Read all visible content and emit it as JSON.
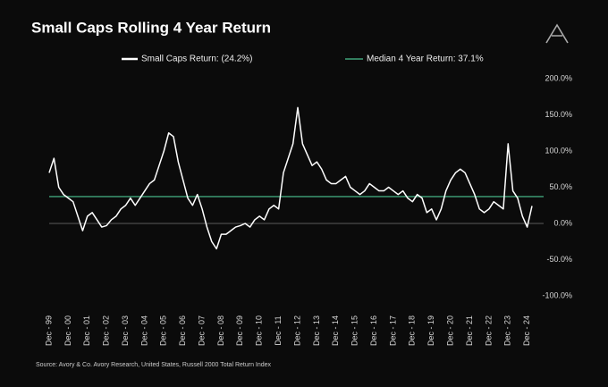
{
  "chart_data": {
    "type": "line",
    "title": "Small Caps Rolling 4 Year Return",
    "source": "Source: Avory & Co. Avory Research, United States, Russell 2000 Total Return Index",
    "categories": [
      "Dec - 99",
      null,
      null,
      null,
      "Dec - 00",
      null,
      null,
      null,
      "Dec - 01",
      null,
      null,
      null,
      "Dec - 02",
      null,
      null,
      null,
      "Dec - 03",
      null,
      null,
      null,
      "Dec - 04",
      null,
      null,
      null,
      "Dec - 05",
      null,
      null,
      null,
      "Dec - 06",
      null,
      null,
      null,
      "Dec - 07",
      null,
      null,
      null,
      "Dec - 08",
      null,
      null,
      null,
      "Dec - 09",
      null,
      null,
      null,
      "Dec - 10",
      null,
      null,
      null,
      "Dec - 11",
      null,
      null,
      null,
      "Dec - 12",
      null,
      null,
      null,
      "Dec - 13",
      null,
      null,
      null,
      "Dec - 14",
      null,
      null,
      null,
      "Dec - 15",
      null,
      null,
      null,
      "Dec - 16",
      null,
      null,
      null,
      "Dec - 17",
      null,
      null,
      null,
      "Dec - 18",
      null,
      null,
      null,
      "Dec - 19",
      null,
      null,
      null,
      "Dec - 20",
      null,
      null,
      null,
      "Dec - 21",
      null,
      null,
      null,
      "Dec - 22",
      null,
      null,
      null,
      "Dec - 23",
      null,
      null,
      null,
      "Dec - 24",
      null
    ],
    "series": [
      {
        "name": "Small Caps Return:  (24.2%)",
        "color": "#ffffff",
        "values": [
          70,
          90,
          50,
          40,
          35,
          30,
          10,
          -10,
          10,
          15,
          5,
          -5,
          -3,
          5,
          10,
          20,
          25,
          35,
          25,
          35,
          45,
          55,
          60,
          80,
          100,
          125,
          120,
          85,
          60,
          35,
          25,
          40,
          20,
          -5,
          -25,
          -35,
          -15,
          -15,
          -10,
          -5,
          -3,
          0,
          -5,
          5,
          10,
          5,
          20,
          25,
          20,
          70,
          90,
          110,
          160,
          110,
          95,
          80,
          85,
          75,
          60,
          55,
          55,
          60,
          65,
          50,
          45,
          40,
          45,
          55,
          50,
          45,
          45,
          50,
          45,
          40,
          45,
          35,
          30,
          40,
          35,
          15,
          20,
          5,
          20,
          45,
          60,
          70,
          75,
          70,
          55,
          40,
          20,
          15,
          20,
          30,
          25,
          20,
          110,
          45,
          35,
          10,
          -5,
          24.2
        ]
      }
    ],
    "median": {
      "name": "Median 4 Year Return: 37.1%",
      "value": 37.1,
      "color": "#3fa37a"
    },
    "ylim": [
      -100,
      200
    ],
    "yticks": [
      {
        "value": -100,
        "label": "-100.0%"
      },
      {
        "value": -50,
        "label": "-50.0%"
      },
      {
        "value": 0,
        "label": "0.0%"
      },
      {
        "value": 50,
        "label": "50.0%"
      },
      {
        "value": 100,
        "label": "100.0%"
      },
      {
        "value": 150,
        "label": "150.0%"
      },
      {
        "value": 200,
        "label": "200.0%"
      }
    ],
    "grid": false
  }
}
